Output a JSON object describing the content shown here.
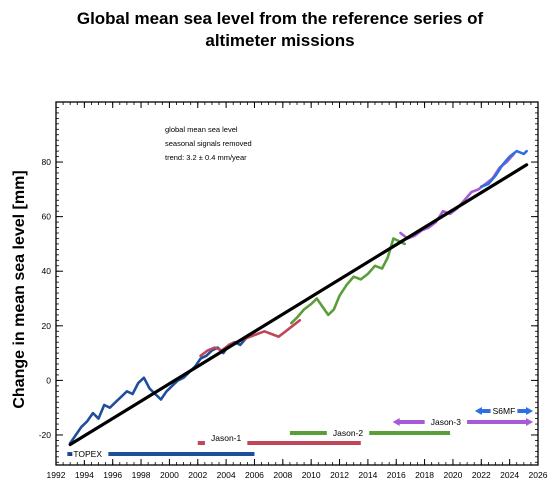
{
  "title_lines": [
    "Global mean sea level from the reference series of",
    "altimeter missions"
  ],
  "chart_data": {
    "type": "line",
    "title": "Global mean sea level from the reference series of altimeter missions",
    "xlabel": "",
    "ylabel": "Change in mean sea level [mm]",
    "xlim": [
      1992,
      2026
    ],
    "ylim": [
      -31,
      102
    ],
    "xticks": [
      1992,
      1994,
      1996,
      1998,
      2000,
      2002,
      2004,
      2006,
      2008,
      2010,
      2012,
      2014,
      2016,
      2018,
      2020,
      2022,
      2024,
      2026
    ],
    "yticks": [
      -20,
      0,
      20,
      40,
      60,
      80
    ],
    "annotations": [
      "global mean sea level",
      "seasonal signals removed",
      "trend:  3.2 ± 0.4 mm/year"
    ],
    "trend": {
      "x": [
        1993,
        2025.2
      ],
      "y": [
        -23.5,
        79
      ]
    },
    "colors": {
      "TOPEX": "#1f4e9c",
      "Jason-1": "#c0475a",
      "Jason-2": "#5a9e3a",
      "Jason-3": "#a65ad6",
      "S6MF": "#2f6fe0",
      "trend": "#000000"
    },
    "series": [
      {
        "name": "TOPEX",
        "x": [
          1993.0,
          1993.4,
          1993.8,
          1994.2,
          1994.6,
          1995.0,
          1995.4,
          1995.8,
          1996.2,
          1996.6,
          1997.0,
          1997.4,
          1997.8,
          1998.2,
          1998.6,
          1999.0,
          1999.4,
          1999.8,
          2000.2,
          2000.6,
          2001.0,
          2001.4,
          2001.8,
          2002.2,
          2002.6,
          2003.0,
          2003.4,
          2003.8,
          2004.2,
          2004.6,
          2005.0,
          2005.5
        ],
        "y": [
          -23,
          -20,
          -17,
          -15,
          -12,
          -14,
          -9,
          -10,
          -8,
          -6,
          -4,
          -5,
          -1,
          1,
          -3,
          -5,
          -7,
          -4,
          -2,
          0,
          1,
          3,
          5,
          8,
          9,
          11,
          12,
          10,
          13,
          14,
          13,
          16
        ]
      },
      {
        "name": "Jason-1",
        "x": [
          2002.2,
          2002.7,
          2003.2,
          2003.7,
          2004.2,
          2004.7,
          2005.2,
          2005.7,
          2006.2,
          2006.7,
          2007.2,
          2007.7,
          2008.2,
          2008.7,
          2009.2
        ],
        "y": [
          9,
          11,
          12,
          11,
          13,
          14,
          15,
          16,
          17,
          18,
          17,
          16,
          18,
          20,
          22
        ]
      },
      {
        "name": "Jason-2",
        "x": [
          2008.6,
          2009.0,
          2009.5,
          2010.0,
          2010.4,
          2010.8,
          2011.2,
          2011.6,
          2012.0,
          2012.5,
          2013.0,
          2013.5,
          2014.0,
          2014.5,
          2015.0,
          2015.4,
          2015.8,
          2016.2,
          2016.6
        ],
        "y": [
          21,
          23,
          26,
          28,
          30,
          27,
          24,
          26,
          31,
          35,
          38,
          37,
          39,
          42,
          41,
          45,
          52,
          51,
          50
        ]
      },
      {
        "name": "Jason-3",
        "x": [
          2016.3,
          2016.8,
          2017.3,
          2017.8,
          2018.3,
          2018.8,
          2019.3,
          2019.8,
          2020.3,
          2020.8,
          2021.3,
          2021.8,
          2022.3,
          2022.8,
          2023.3,
          2023.8,
          2024.3
        ],
        "y": [
          54,
          52,
          53,
          55,
          56,
          58,
          62,
          61,
          63,
          66,
          69,
          70,
          72,
          74,
          78,
          80,
          83
        ]
      },
      {
        "name": "S6MF",
        "x": [
          2022.0,
          2022.5,
          2023.0,
          2023.5,
          2024.0,
          2024.5,
          2025.0,
          2025.2
        ],
        "y": [
          71,
          72,
          75,
          79,
          82,
          84,
          83,
          84
        ]
      }
    ],
    "mission_bars": [
      {
        "name": "TOPEX",
        "start": 1992.8,
        "end": 2006.0
      },
      {
        "name": "Jason-1",
        "start": 2002.0,
        "end": 2013.5
      },
      {
        "name": "Jason-2",
        "start": 2008.5,
        "end": 2019.8
      },
      {
        "name": "Jason-3",
        "start": 2016.1,
        "end": 2025.3
      },
      {
        "name": "S6MF",
        "start": 2021.9,
        "end": 2025.3
      }
    ]
  }
}
